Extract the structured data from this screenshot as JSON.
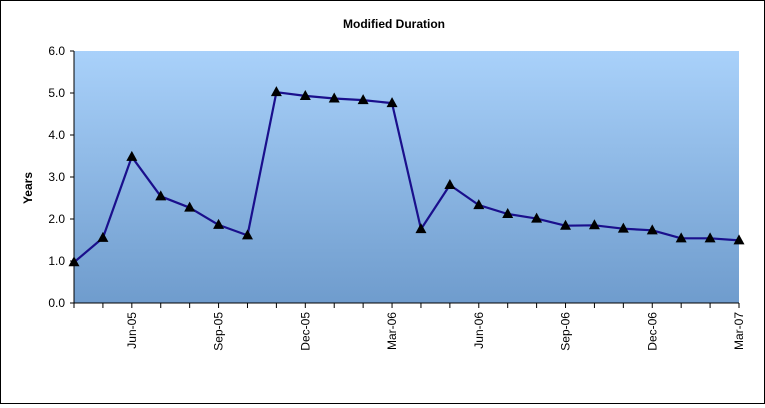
{
  "chart_data": {
    "type": "line",
    "title": "Modified Duration",
    "xlabel": "",
    "ylabel": "Years",
    "ylim": [
      0,
      6
    ],
    "yticks": [
      "0.0",
      "1.0",
      "2.0",
      "3.0",
      "4.0",
      "5.0",
      "6.0"
    ],
    "x_tick_labels": [
      "Jun-05",
      "Sep-05",
      "Dec-05",
      "Mar-06",
      "Jun-06",
      "Sep-06",
      "Dec-06",
      "Mar-07"
    ],
    "grid": false,
    "legend": "none",
    "colors": {
      "line": "#1a0f8c",
      "plot_top": "#a9d1fa",
      "plot_bottom": "#6f9ccd",
      "marker": "#000000"
    },
    "series": [
      {
        "x": [
          "Apr-05",
          "May-05",
          "Jun-05",
          "Jul-05",
          "Aug-05",
          "Sep-05",
          "Oct-05",
          "Nov-05",
          "Dec-05",
          "Jan-06",
          "Feb-06",
          "Mar-06",
          "Apr-06",
          "May-06",
          "Jun-06",
          "Jul-06",
          "Aug-06",
          "Sep-06",
          "Oct-06",
          "Nov-06",
          "Dec-06",
          "Jan-07",
          "Feb-07",
          "Mar-07"
        ],
        "values": [
          0.97,
          1.55,
          3.48,
          2.54,
          2.27,
          1.86,
          1.61,
          5.02,
          4.93,
          4.87,
          4.83,
          4.76,
          1.76,
          2.81,
          2.33,
          2.12,
          2.01,
          1.84,
          1.85,
          1.77,
          1.73,
          1.54,
          1.54,
          1.49
        ]
      }
    ]
  }
}
